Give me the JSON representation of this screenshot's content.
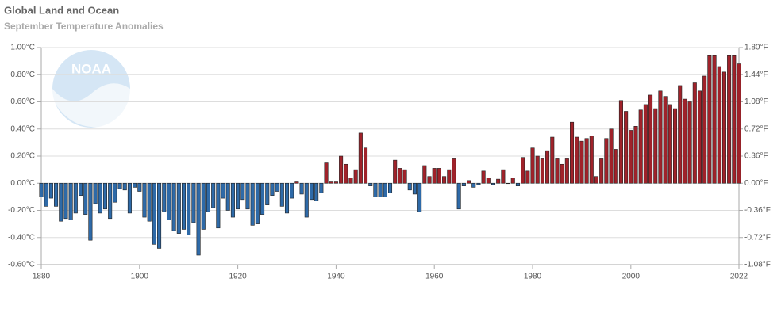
{
  "chart_data": {
    "type": "bar",
    "title": "Global Land and Ocean",
    "subtitle": "September Temperature Anomalies",
    "logo_text": "NOAA",
    "x": [
      1880,
      1881,
      1882,
      1883,
      1884,
      1885,
      1886,
      1887,
      1888,
      1889,
      1890,
      1891,
      1892,
      1893,
      1894,
      1895,
      1896,
      1897,
      1898,
      1899,
      1900,
      1901,
      1902,
      1903,
      1904,
      1905,
      1906,
      1907,
      1908,
      1909,
      1910,
      1911,
      1912,
      1913,
      1914,
      1915,
      1916,
      1917,
      1918,
      1919,
      1920,
      1921,
      1922,
      1923,
      1924,
      1925,
      1926,
      1927,
      1928,
      1929,
      1930,
      1931,
      1932,
      1933,
      1934,
      1935,
      1936,
      1937,
      1938,
      1939,
      1940,
      1941,
      1942,
      1943,
      1944,
      1945,
      1946,
      1947,
      1948,
      1949,
      1950,
      1951,
      1952,
      1953,
      1954,
      1955,
      1956,
      1957,
      1958,
      1959,
      1960,
      1961,
      1962,
      1963,
      1964,
      1965,
      1966,
      1967,
      1968,
      1969,
      1970,
      1971,
      1972,
      1973,
      1974,
      1975,
      1976,
      1977,
      1978,
      1979,
      1980,
      1981,
      1982,
      1983,
      1984,
      1985,
      1986,
      1987,
      1988,
      1989,
      1990,
      1991,
      1992,
      1993,
      1994,
      1995,
      1996,
      1997,
      1998,
      1999,
      2000,
      2001,
      2002,
      2003,
      2004,
      2005,
      2006,
      2007,
      2008,
      2009,
      2010,
      2011,
      2012,
      2013,
      2014,
      2015,
      2016,
      2017,
      2018,
      2019,
      2020,
      2021,
      2022
    ],
    "series": [
      {
        "positive_color": "#a0222a",
        "negative_color": "#2e6aa8",
        "values": [
          -0.1,
          -0.17,
          -0.11,
          -0.17,
          -0.28,
          -0.26,
          -0.27,
          -0.22,
          -0.09,
          -0.23,
          -0.42,
          -0.15,
          -0.22,
          -0.19,
          -0.26,
          -0.14,
          -0.04,
          -0.05,
          -0.22,
          -0.03,
          -0.06,
          -0.25,
          -0.28,
          -0.45,
          -0.48,
          -0.21,
          -0.27,
          -0.35,
          -0.37,
          -0.34,
          -0.38,
          -0.29,
          -0.53,
          -0.34,
          -0.21,
          -0.18,
          -0.33,
          -0.11,
          -0.2,
          -0.25,
          -0.19,
          -0.12,
          -0.19,
          -0.31,
          -0.3,
          -0.23,
          -0.16,
          -0.09,
          -0.06,
          -0.17,
          -0.22,
          -0.11,
          0.01,
          -0.08,
          -0.25,
          -0.12,
          -0.13,
          -0.07,
          0.15,
          0.01,
          0.01,
          0.2,
          0.14,
          0.04,
          0.1,
          0.37,
          0.26,
          -0.02,
          -0.1,
          -0.1,
          -0.1,
          -0.07,
          0.17,
          0.11,
          0.1,
          -0.05,
          -0.08,
          -0.21,
          0.13,
          0.05,
          0.11,
          0.11,
          0.05,
          0.1,
          0.18,
          -0.19,
          -0.02,
          0.02,
          -0.03,
          -0.01,
          0.09,
          0.04,
          -0.01,
          0.03,
          0.1,
          0.0,
          0.04,
          -0.02,
          0.19,
          0.09,
          0.26,
          0.2,
          0.18,
          0.24,
          0.34,
          0.18,
          0.14,
          0.18,
          0.45,
          0.34,
          0.31,
          0.33,
          0.35,
          0.05,
          0.18,
          0.33,
          0.4,
          0.25,
          0.61,
          0.53,
          0.39,
          0.42,
          0.54,
          0.58,
          0.65,
          0.55,
          0.68,
          0.64,
          0.58,
          0.55,
          0.72,
          0.62,
          0.6,
          0.74,
          0.68,
          0.79,
          0.94,
          0.94,
          0.86,
          0.82,
          0.94,
          0.94,
          0.88
        ]
      }
    ],
    "xlim": [
      1880,
      2022
    ],
    "xticks": [
      1880,
      1900,
      1920,
      1940,
      1960,
      1980,
      2000,
      2022
    ],
    "ylim": [
      -0.6,
      1.0
    ],
    "yticks": [
      {
        "value": 1.0,
        "label": "1.00°C"
      },
      {
        "value": 0.8,
        "label": "0.80°C"
      },
      {
        "value": 0.6,
        "label": "0.60°C"
      },
      {
        "value": 0.4,
        "label": "0.40°C"
      },
      {
        "value": 0.2,
        "label": "0.20°C"
      },
      {
        "value": 0,
        "label": "0.00°C"
      },
      {
        "value": -0.2,
        "label": "-0.20°C"
      },
      {
        "value": -0.4,
        "label": "-0.40°C"
      },
      {
        "value": -0.6,
        "label": "-0.60°C"
      }
    ],
    "y2lim": [
      -1.08,
      1.8
    ],
    "y2ticks": [
      {
        "value": 1.8,
        "label": "1.80°F"
      },
      {
        "value": 1.44,
        "label": "1.44°F"
      },
      {
        "value": 1.08,
        "label": "1.08°F"
      },
      {
        "value": 0.72,
        "label": "0.72°F"
      },
      {
        "value": 0.36,
        "label": "0.36°F"
      },
      {
        "value": 0,
        "label": "0.00°F"
      },
      {
        "value": -0.36,
        "label": "-0.36°F"
      },
      {
        "value": -0.72,
        "label": "-0.72°F"
      },
      {
        "value": -1.08,
        "label": "-1.08°F"
      }
    ],
    "grid": true
  }
}
